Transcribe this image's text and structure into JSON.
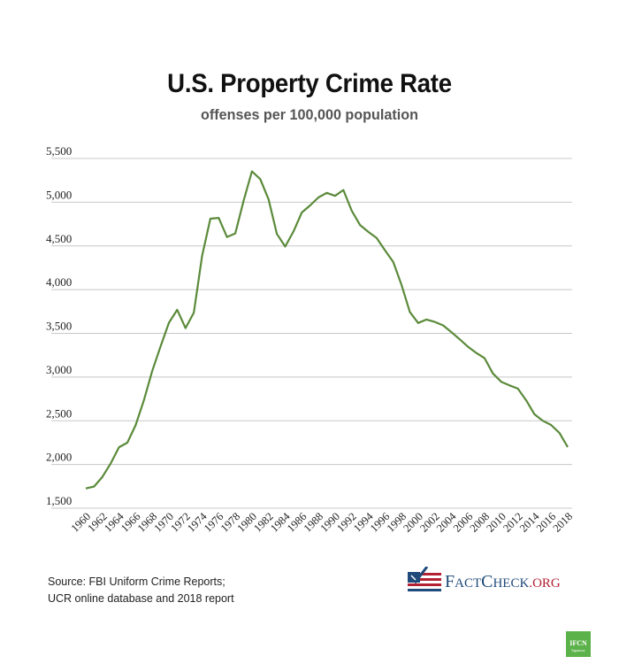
{
  "header": {
    "title": "U.S. Property Crime Rate",
    "subtitle": "offenses per 100,000 population"
  },
  "footer": {
    "source_line1": "Source: FBI Uniform Crime Reports;",
    "source_line2": "UCR online database and 2018 report",
    "logo": {
      "icon": "flag-checkmark-icon",
      "text_f": "F",
      "text_act": "ACT",
      "text_c": "C",
      "text_heck": "HECK",
      "text_org": ".ORG"
    },
    "badge": {
      "icon": "ifcn-signatory-badge",
      "text": "IFCN",
      "subtext": "Signatory",
      "color": "#5cb24a"
    }
  },
  "colors": {
    "line": "#5b8a3a",
    "grid": "#c8c8c8",
    "tick_text": "#222222"
  },
  "chart_data": {
    "type": "line",
    "title": "U.S. Property Crime Rate",
    "subtitle": "offenses per 100,000 population",
    "xlabel": "",
    "ylabel": "",
    "ylim": [
      1500,
      5500
    ],
    "yticks": [
      1500,
      2000,
      2500,
      3000,
      3500,
      4000,
      4500,
      5000,
      5500
    ],
    "ytick_labels": [
      "1,500",
      "2,000",
      "2,500",
      "3,000",
      "3,500",
      "4,000",
      "4,500",
      "5,000",
      "5,500"
    ],
    "xlim": [
      1960,
      2018
    ],
    "xtick_labels": [
      "1960",
      "1962",
      "1964",
      "1966",
      "1968",
      "1970",
      "1972",
      "1974",
      "1976",
      "1978",
      "1980",
      "1982",
      "1984",
      "1986",
      "1988",
      "1990",
      "1992",
      "1994",
      "1996",
      "1998",
      "2000",
      "2002",
      "2004",
      "2006",
      "2008",
      "2010",
      "2012",
      "2014",
      "2016",
      "2018"
    ],
    "grid": "horizontal",
    "legend": "none",
    "x": [
      1960,
      1961,
      1962,
      1963,
      1964,
      1965,
      1966,
      1967,
      1968,
      1969,
      1970,
      1971,
      1972,
      1973,
      1974,
      1975,
      1976,
      1977,
      1978,
      1979,
      1980,
      1981,
      1982,
      1983,
      1984,
      1985,
      1986,
      1987,
      1988,
      1989,
      1990,
      1991,
      1992,
      1993,
      1994,
      1995,
      1996,
      1997,
      1998,
      1999,
      2000,
      2001,
      2002,
      2003,
      2004,
      2005,
      2006,
      2007,
      2008,
      2009,
      2010,
      2011,
      2012,
      2013,
      2014,
      2015,
      2016,
      2017,
      2018
    ],
    "series": [
      {
        "name": "Property crime rate",
        "values": [
          1726,
          1748,
          1858,
          2012,
          2198,
          2249,
          2451,
          2737,
          3072,
          3351,
          3621,
          3769,
          3560,
          3737,
          4389,
          4811,
          4820,
          4602,
          4643,
          5017,
          5353,
          5264,
          5033,
          4637,
          4492,
          4666,
          4882,
          4963,
          5054,
          5107,
          5073,
          5140,
          4904,
          4740,
          4660,
          4591,
          4451,
          4316,
          4053,
          3744,
          3618,
          3658,
          3631,
          3591,
          3514,
          3432,
          3347,
          3276,
          3215,
          3041,
          2946,
          2905,
          2868,
          2734,
          2574,
          2501,
          2452,
          2362,
          2200
        ]
      }
    ]
  }
}
